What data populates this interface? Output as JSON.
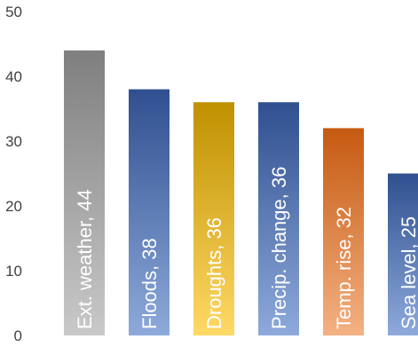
{
  "chart_data": {
    "type": "bar",
    "title": "",
    "xlabel": "",
    "ylabel": "",
    "ylim": [
      0,
      50
    ],
    "y_ticks": [
      0,
      10,
      20,
      30,
      40,
      50
    ],
    "grid": false,
    "legend": "none",
    "categories": [
      "Ext. weather",
      "Floods",
      "Droughts",
      "Precip. change",
      "Temp. rise",
      "Sea level"
    ],
    "values": [
      44,
      38,
      36,
      36,
      32,
      25
    ],
    "data_labels": [
      "Ext. weather, 44",
      "Floods, 38",
      "Droughts, 36",
      "Precip. change, 36",
      "Temp. rise, 32",
      "Sea level, 25"
    ],
    "bar_colors": [
      {
        "top": "#7f7f7f",
        "bottom": "#c9c9c9"
      },
      {
        "top": "#2f4f8f",
        "bottom": "#8eaadb"
      },
      {
        "top": "#bf9000",
        "bottom": "#ffd966"
      },
      {
        "top": "#2f4f8f",
        "bottom": "#8eaadb"
      },
      {
        "top": "#c55a11",
        "bottom": "#f4b183"
      },
      {
        "top": "#2f4f8f",
        "bottom": "#8eaadb"
      }
    ],
    "tick_color": "#404040",
    "label_color": "#ffffff"
  }
}
